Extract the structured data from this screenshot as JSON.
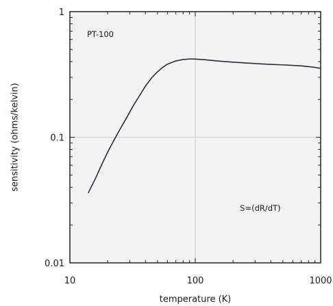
{
  "chart_data": {
    "type": "line",
    "xlabel": "temperature (K)",
    "ylabel": "sensitivity (ohms/kelvin)",
    "xscale": "log",
    "yscale": "log",
    "xlim": [
      10,
      1000
    ],
    "ylim": [
      0.01,
      1
    ],
    "x_ticks": [
      {
        "value": 10,
        "label": "10"
      },
      {
        "value": 100,
        "label": "100"
      },
      {
        "value": 1000,
        "label": "1000"
      }
    ],
    "y_ticks": [
      {
        "value": 0.01,
        "label": "0.01"
      },
      {
        "value": 0.1,
        "label": "0.1"
      },
      {
        "value": 1,
        "label": "1"
      }
    ],
    "grid": "major",
    "annotations": [
      {
        "text": "PT-100",
        "x": 17.5,
        "y": 0.63
      },
      {
        "text": "S=(dR/dT)",
        "x": 330,
        "y": 0.026
      }
    ],
    "series": [
      {
        "points": [
          [
            14,
            0.036
          ],
          [
            16,
            0.047
          ],
          [
            18,
            0.061
          ],
          [
            20,
            0.076
          ],
          [
            22,
            0.091
          ],
          [
            25,
            0.115
          ],
          [
            28,
            0.14
          ],
          [
            32,
            0.178
          ],
          [
            36,
            0.215
          ],
          [
            40,
            0.255
          ],
          [
            45,
            0.298
          ],
          [
            50,
            0.332
          ],
          [
            55,
            0.36
          ],
          [
            60,
            0.382
          ],
          [
            70,
            0.405
          ],
          [
            80,
            0.416
          ],
          [
            90,
            0.42
          ],
          [
            100,
            0.419
          ],
          [
            120,
            0.414
          ],
          [
            150,
            0.405
          ],
          [
            200,
            0.396
          ],
          [
            300,
            0.386
          ],
          [
            400,
            0.38
          ],
          [
            500,
            0.377
          ],
          [
            600,
            0.373
          ],
          [
            700,
            0.37
          ],
          [
            800,
            0.365
          ],
          [
            900,
            0.36
          ],
          [
            1000,
            0.354
          ]
        ]
      }
    ],
    "colors": {
      "plot_background": "#f3f3f3",
      "grid": "#cccccc",
      "frame": "#222222",
      "line": "#2a2a3a"
    }
  }
}
